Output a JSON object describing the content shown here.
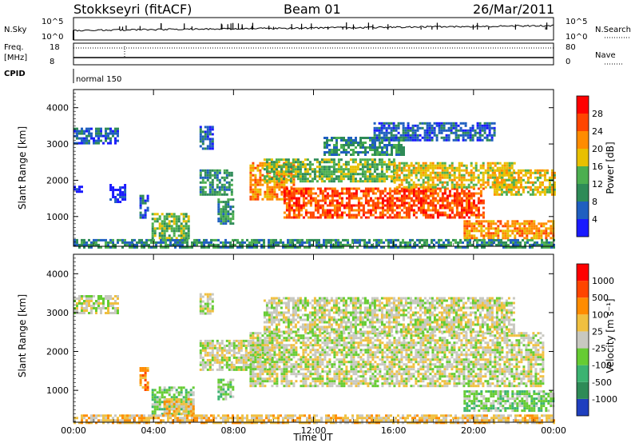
{
  "header": {
    "station": "Stokkseyri (fitACF)",
    "beam": "Beam 01",
    "date": "26/Mar/2011"
  },
  "top_panels": {
    "nsky_label": "N.Sky",
    "nsky_ticks": [
      "10^5",
      "10^0"
    ],
    "nsearch_label": "N.Search",
    "nsearch_ticks": [
      "10^5",
      "10^0"
    ],
    "freq_label": "Freq.",
    "freq_unit": "[MHz]",
    "freq_ticks": [
      "18",
      "8"
    ],
    "nave_label": "Nave",
    "nave_ticks": [
      "80",
      "0"
    ],
    "cpid_label": "CPID",
    "cpid_value": "normal 150"
  },
  "chart_data": [
    {
      "type": "heatmap",
      "ylabel": "Slant Range [km]",
      "xlabel": "",
      "ylim": [
        180,
        4500
      ],
      "xlim": [
        0,
        24
      ],
      "yticks": [
        1000,
        2000,
        3000,
        4000
      ],
      "colorbar": {
        "label": "Power [dB]",
        "ticks": [
          4,
          8,
          12,
          16,
          20,
          24,
          28
        ],
        "colors": [
          "#1a1aff",
          "#1f5fc0",
          "#2e8b57",
          "#4caf50",
          "#e8c000",
          "#ff8c00",
          "#ff4500",
          "#ff0000"
        ]
      },
      "regions": [
        {
          "t0": 0.0,
          "t1": 2.2,
          "r0": 3000,
          "r1": 3450,
          "level": 1
        },
        {
          "t0": 0.0,
          "t1": 0.4,
          "r0": 1700,
          "r1": 1850,
          "level": 0
        },
        {
          "t0": 1.8,
          "t1": 2.6,
          "r0": 1400,
          "r1": 1900,
          "level": 0
        },
        {
          "t0": 3.3,
          "t1": 3.7,
          "r0": 1000,
          "r1": 1600,
          "level": 1
        },
        {
          "t0": 3.9,
          "t1": 5.8,
          "r0": 400,
          "r1": 1100,
          "level": 3
        },
        {
          "t0": 6.3,
          "t1": 6.9,
          "r0": 2900,
          "r1": 3500,
          "level": 1
        },
        {
          "t0": 6.3,
          "t1": 7.9,
          "r0": 1600,
          "r1": 2300,
          "level": 2
        },
        {
          "t0": 7.2,
          "t1": 8.0,
          "r0": 800,
          "r1": 1500,
          "level": 2
        },
        {
          "t0": 8.8,
          "t1": 11.0,
          "r0": 1500,
          "r1": 2500,
          "level": 5
        },
        {
          "t0": 9.5,
          "t1": 16.0,
          "r0": 2000,
          "r1": 2600,
          "level": 3
        },
        {
          "t0": 10.5,
          "t1": 20.5,
          "r0": 1000,
          "r1": 1800,
          "level": 6
        },
        {
          "t0": 16.0,
          "t1": 22.0,
          "r0": 1800,
          "r1": 2500,
          "level": 4
        },
        {
          "t0": 12.5,
          "t1": 16.5,
          "r0": 2700,
          "r1": 3200,
          "level": 2
        },
        {
          "t0": 15.0,
          "t1": 21.0,
          "r0": 3100,
          "r1": 3600,
          "level": 1
        },
        {
          "t0": 19.5,
          "t1": 24.0,
          "r0": 400,
          "r1": 900,
          "level": 5
        },
        {
          "t0": 21.0,
          "t1": 24.0,
          "r0": 1600,
          "r1": 2300,
          "level": 4
        },
        {
          "t0": 0.0,
          "t1": 24.0,
          "r0": 180,
          "r1": 380,
          "level": 2
        }
      ]
    },
    {
      "type": "heatmap",
      "ylabel": "Slant Range [km]",
      "xlabel": "Time UT",
      "ylim": [
        180,
        4500
      ],
      "xlim": [
        0,
        24
      ],
      "yticks": [
        1000,
        2000,
        3000,
        4000
      ],
      "xticks": [
        "00:00",
        "04:00",
        "08:00",
        "12:00",
        "16:00",
        "20:00",
        "00:00"
      ],
      "colorbar": {
        "label": "Velocity [m s⁻¹]",
        "ticks": [
          1000,
          500,
          100,
          25,
          -25,
          -100,
          -500,
          -1000
        ],
        "colors": [
          "#1f3fbf",
          "#2e8b57",
          "#3cb371",
          "#66cc33",
          "#c8c8c0",
          "#f0c040",
          "#ff8c00",
          "#ff4500",
          "#ff0000"
        ]
      },
      "regions": [
        {
          "t0": 0.0,
          "t1": 2.2,
          "r0": 3000,
          "r1": 3450,
          "level": 4
        },
        {
          "t0": 3.3,
          "t1": 3.7,
          "r0": 1000,
          "r1": 1600,
          "level": 6
        },
        {
          "t0": 3.9,
          "t1": 6.0,
          "r0": 400,
          "r1": 1100,
          "level": 3
        },
        {
          "t0": 4.5,
          "t1": 6.0,
          "r0": 400,
          "r1": 800,
          "level": 5
        },
        {
          "t0": 6.3,
          "t1": 6.9,
          "r0": 3000,
          "r1": 3500,
          "level": 4
        },
        {
          "t0": 6.3,
          "t1": 10.0,
          "r0": 1500,
          "r1": 2300,
          "level": 4
        },
        {
          "t0": 8.8,
          "t1": 23.5,
          "r0": 1100,
          "r1": 2500,
          "level": 4
        },
        {
          "t0": 9.5,
          "t1": 22.0,
          "r0": 2500,
          "r1": 3400,
          "level": 4
        },
        {
          "t0": 7.2,
          "t1": 8.0,
          "r0": 800,
          "r1": 1300,
          "level": 3
        },
        {
          "t0": 19.5,
          "t1": 24.0,
          "r0": 500,
          "r1": 1000,
          "level": 3
        },
        {
          "t0": 0.0,
          "t1": 24.0,
          "r0": 180,
          "r1": 380,
          "level": 5
        }
      ]
    }
  ]
}
